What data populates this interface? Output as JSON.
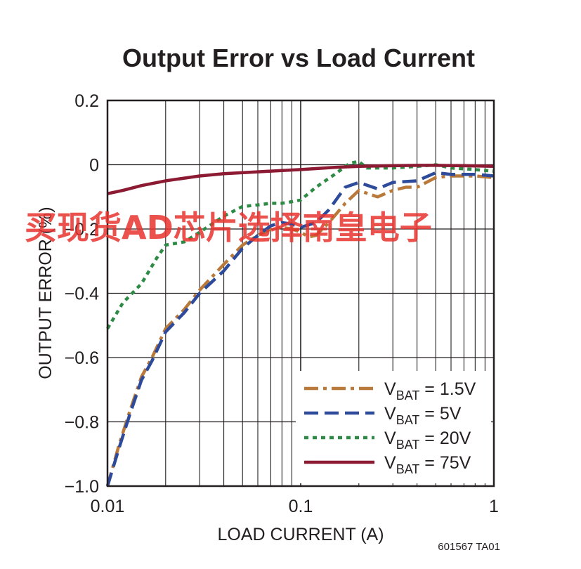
{
  "chart_data": {
    "type": "line",
    "title": "Output Error vs Load Current",
    "xlabel": "LOAD CURRENT (A)",
    "ylabel": "OUTPUT ERROR (%)",
    "xscale": "log",
    "xlim": [
      0.01,
      1
    ],
    "ylim": [
      -1.0,
      0.2
    ],
    "xticks": [
      {
        "value": 0.01,
        "label": "0.01"
      },
      {
        "value": 0.1,
        "label": "0.1"
      },
      {
        "value": 1,
        "label": "1"
      }
    ],
    "yticks": [
      {
        "value": 0.2,
        "label": "0.2"
      },
      {
        "value": 0,
        "label": "0"
      },
      {
        "value": -0.2,
        "label": "−0.2"
      },
      {
        "value": -0.4,
        "label": "−0.4"
      },
      {
        "value": -0.6,
        "label": "−0.6"
      },
      {
        "value": -0.8,
        "label": "−0.8"
      },
      {
        "value": -1.0,
        "label": "−1.0"
      }
    ],
    "grid": true,
    "legend_position": "bottom-right",
    "series": [
      {
        "name": "1.5V",
        "color": "#b8793a",
        "style": "dashdot",
        "points": [
          [
            0.01,
            -1.0
          ],
          [
            0.0115,
            -0.87
          ],
          [
            0.013,
            -0.77
          ],
          [
            0.015,
            -0.66
          ],
          [
            0.017,
            -0.6
          ],
          [
            0.02,
            -0.51
          ],
          [
            0.025,
            -0.45
          ],
          [
            0.03,
            -0.39
          ],
          [
            0.04,
            -0.31
          ],
          [
            0.05,
            -0.25
          ],
          [
            0.06,
            -0.22
          ],
          [
            0.07,
            -0.2
          ],
          [
            0.08,
            -0.195
          ],
          [
            0.09,
            -0.2
          ],
          [
            0.1,
            -0.21
          ],
          [
            0.11,
            -0.225
          ],
          [
            0.12,
            -0.22
          ],
          [
            0.14,
            -0.18
          ],
          [
            0.17,
            -0.12
          ],
          [
            0.2,
            -0.08
          ],
          [
            0.25,
            -0.1
          ],
          [
            0.3,
            -0.08
          ],
          [
            0.35,
            -0.07
          ],
          [
            0.4,
            -0.07
          ],
          [
            0.5,
            -0.04
          ],
          [
            0.6,
            -0.035
          ],
          [
            0.8,
            -0.035
          ],
          [
            1,
            -0.04
          ]
        ]
      },
      {
        "name": "5V",
        "color": "#2e4b9b",
        "style": "dashed",
        "points": [
          [
            0.01,
            -1.0
          ],
          [
            0.0115,
            -0.88
          ],
          [
            0.013,
            -0.78
          ],
          [
            0.015,
            -0.67
          ],
          [
            0.017,
            -0.61
          ],
          [
            0.02,
            -0.52
          ],
          [
            0.025,
            -0.46
          ],
          [
            0.03,
            -0.4
          ],
          [
            0.04,
            -0.33
          ],
          [
            0.05,
            -0.26
          ],
          [
            0.06,
            -0.22
          ],
          [
            0.07,
            -0.19
          ],
          [
            0.08,
            -0.18
          ],
          [
            0.09,
            -0.185
          ],
          [
            0.1,
            -0.195
          ],
          [
            0.12,
            -0.18
          ],
          [
            0.14,
            -0.14
          ],
          [
            0.17,
            -0.07
          ],
          [
            0.2,
            -0.055
          ],
          [
            0.25,
            -0.075
          ],
          [
            0.3,
            -0.055
          ],
          [
            0.4,
            -0.05
          ],
          [
            0.5,
            -0.025
          ],
          [
            0.6,
            -0.03
          ],
          [
            0.8,
            -0.03
          ],
          [
            1,
            -0.035
          ]
        ]
      },
      {
        "name": "20V",
        "color": "#2e8b45",
        "style": "dotted",
        "points": [
          [
            0.01,
            -0.51
          ],
          [
            0.012,
            -0.43
          ],
          [
            0.015,
            -0.37
          ],
          [
            0.018,
            -0.29
          ],
          [
            0.02,
            -0.25
          ],
          [
            0.025,
            -0.24
          ],
          [
            0.03,
            -0.21
          ],
          [
            0.04,
            -0.16
          ],
          [
            0.05,
            -0.13
          ],
          [
            0.06,
            -0.125
          ],
          [
            0.07,
            -0.12
          ],
          [
            0.08,
            -0.12
          ],
          [
            0.09,
            -0.115
          ],
          [
            0.1,
            -0.11
          ],
          [
            0.12,
            -0.07
          ],
          [
            0.15,
            -0.03
          ],
          [
            0.18,
            0.005
          ],
          [
            0.2,
            0.01
          ],
          [
            0.22,
            -0.01
          ],
          [
            0.3,
            -0.01
          ],
          [
            0.4,
            -0.005
          ],
          [
            0.5,
            0.0
          ],
          [
            0.6,
            -0.01
          ],
          [
            0.8,
            -0.015
          ],
          [
            1,
            -0.02
          ]
        ]
      },
      {
        "name": "75V",
        "color": "#8b1a32",
        "style": "solid",
        "points": [
          [
            0.01,
            -0.09
          ],
          [
            0.012,
            -0.08
          ],
          [
            0.015,
            -0.065
          ],
          [
            0.02,
            -0.05
          ],
          [
            0.03,
            -0.035
          ],
          [
            0.04,
            -0.028
          ],
          [
            0.06,
            -0.022
          ],
          [
            0.08,
            -0.018
          ],
          [
            0.1,
            -0.015
          ],
          [
            0.15,
            -0.008
          ],
          [
            0.2,
            -0.005
          ],
          [
            0.3,
            -0.003
          ],
          [
            0.4,
            -0.002
          ],
          [
            0.5,
            -0.002
          ],
          [
            0.7,
            -0.003
          ],
          [
            1,
            -0.005
          ]
        ]
      }
    ],
    "legend_prefix": "V",
    "legend_subscript": "BAT",
    "legend_equals": " = "
  },
  "figure_code": "601567 TA01",
  "watermark": "买现货AD芯片选择南皇电子"
}
